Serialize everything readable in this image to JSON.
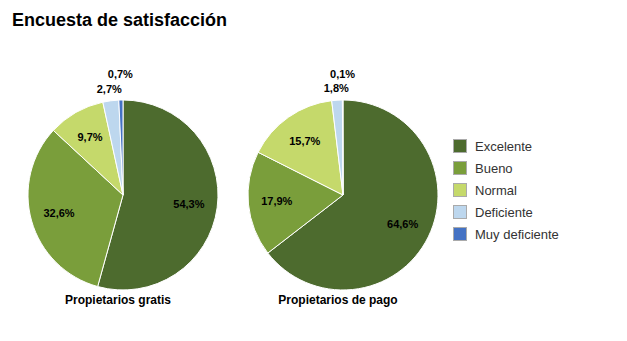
{
  "chart_data": {
    "type": "pie",
    "title": "Encuesta de satisfacción",
    "categories": [
      "Excelente",
      "Bueno",
      "Normal",
      "Deficiente",
      "Muy deficiente"
    ],
    "colors": [
      "#4d6b2e",
      "#7a9e3b",
      "#c5d96b",
      "#bdd7ee",
      "#4472c4"
    ],
    "series": [
      {
        "name": "Propietarios gratis",
        "values": [
          54.3,
          32.6,
          9.7,
          2.7,
          0.7
        ],
        "value_labels": [
          "54,3%",
          "32,6%",
          "9,7%",
          "2,7%",
          "0,7%"
        ]
      },
      {
        "name": "Propietarios de pago",
        "values": [
          64.6,
          17.9,
          15.7,
          1.8,
          0.1
        ],
        "value_labels": [
          "64,6%",
          "17,9%",
          "15,7%",
          "1,8%",
          "0,1%"
        ]
      }
    ],
    "data_labels": true,
    "legend": "right"
  }
}
